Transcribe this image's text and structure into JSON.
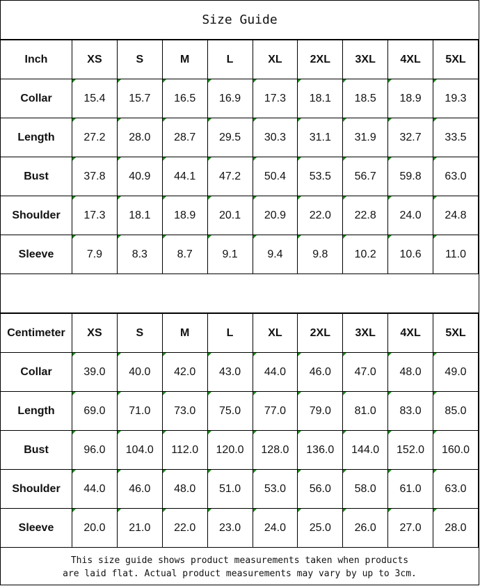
{
  "title": "Size Guide",
  "inch": {
    "header": [
      "Inch",
      "XS",
      "S",
      "M",
      "L",
      "XL",
      "2XL",
      "3XL",
      "4XL",
      "5XL"
    ],
    "rows": [
      [
        "Collar",
        "15.4",
        "15.7",
        "16.5",
        "16.9",
        "17.3",
        "18.1",
        "18.5",
        "18.9",
        "19.3"
      ],
      [
        "Length",
        "27.2",
        "28.0",
        "28.7",
        "29.5",
        "30.3",
        "31.1",
        "31.9",
        "32.7",
        "33.5"
      ],
      [
        "Bust",
        "37.8",
        "40.9",
        "44.1",
        "47.2",
        "50.4",
        "53.5",
        "56.7",
        "59.8",
        "63.0"
      ],
      [
        "Shoulder",
        "17.3",
        "18.1",
        "18.9",
        "20.1",
        "20.9",
        "22.0",
        "22.8",
        "24.0",
        "24.8"
      ],
      [
        "Sleeve",
        "7.9",
        "8.3",
        "8.7",
        "9.1",
        "9.4",
        "9.8",
        "10.2",
        "10.6",
        "11.0"
      ]
    ]
  },
  "cm": {
    "header": [
      "Centimeter",
      "XS",
      "S",
      "M",
      "L",
      "XL",
      "2XL",
      "3XL",
      "4XL",
      "5XL"
    ],
    "rows": [
      [
        "Collar",
        "39.0",
        "40.0",
        "42.0",
        "43.0",
        "44.0",
        "46.0",
        "47.0",
        "48.0",
        "49.0"
      ],
      [
        "Length",
        "69.0",
        "71.0",
        "73.0",
        "75.0",
        "77.0",
        "79.0",
        "81.0",
        "83.0",
        "85.0"
      ],
      [
        "Bust",
        "96.0",
        "104.0",
        "112.0",
        "120.0",
        "128.0",
        "136.0",
        "144.0",
        "152.0",
        "160.0"
      ],
      [
        "Shoulder",
        "44.0",
        "46.0",
        "48.0",
        "51.0",
        "53.0",
        "56.0",
        "58.0",
        "61.0",
        "63.0"
      ],
      [
        "Sleeve",
        "20.0",
        "21.0",
        "22.0",
        "23.0",
        "24.0",
        "25.0",
        "26.0",
        "27.0",
        "28.0"
      ]
    ]
  },
  "footer": {
    "line1": "This size guide shows product measurements taken when products",
    "line2": "are laid flat. Actual product measurements may vary by up to 3cm."
  },
  "colors": {
    "border": "#000000",
    "cell_marker": "#1a8a1a"
  }
}
